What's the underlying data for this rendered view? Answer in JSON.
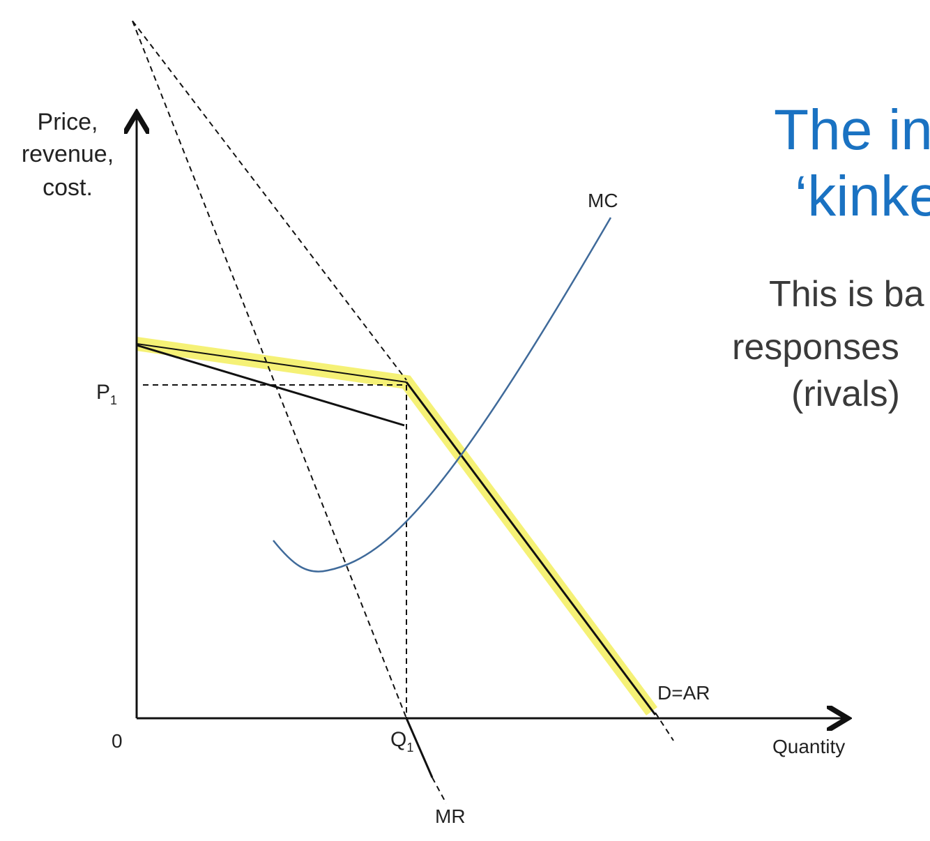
{
  "diagram": {
    "y_axis_label": [
      "Price,",
      "revenue,",
      "cost."
    ],
    "x_axis_label": "Quantity",
    "origin": "0",
    "price_label": {
      "main": "P",
      "sub": "1"
    },
    "quantity_label": {
      "main": "Q",
      "sub": "1"
    },
    "curves": {
      "mc": "MC",
      "demand": "D=AR",
      "mr": "MR"
    }
  },
  "slide": {
    "title": [
      "The in",
      "‘kinke"
    ],
    "body": [
      "This is ba",
      "responses",
      "(rivals)"
    ]
  }
}
